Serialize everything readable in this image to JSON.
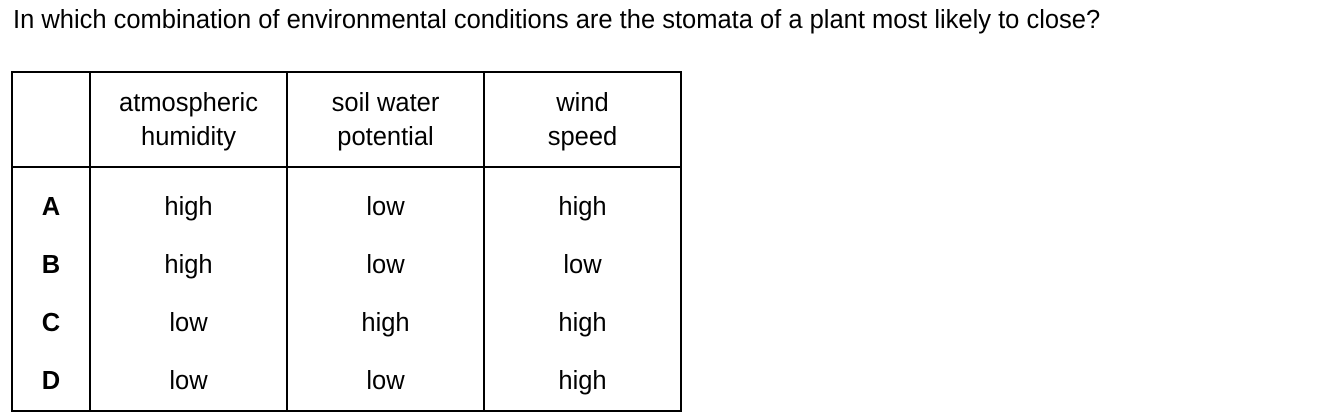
{
  "question": "In which combination of environmental conditions are the stomata of a plant most likely to close?",
  "table": {
    "headers": [
      {
        "line1": "",
        "line2": ""
      },
      {
        "line1": "atmospheric",
        "line2": "humidity"
      },
      {
        "line1": "soil water",
        "line2": "potential"
      },
      {
        "line1": "wind",
        "line2": "speed"
      }
    ],
    "rows": [
      {
        "option": "A",
        "humidity": "high",
        "soil": "low",
        "wind": "high"
      },
      {
        "option": "B",
        "humidity": "high",
        "soil": "low",
        "wind": "low"
      },
      {
        "option": "C",
        "humidity": "low",
        "soil": "high",
        "wind": "high"
      },
      {
        "option": "D",
        "humidity": "low",
        "soil": "low",
        "wind": "high"
      }
    ]
  }
}
